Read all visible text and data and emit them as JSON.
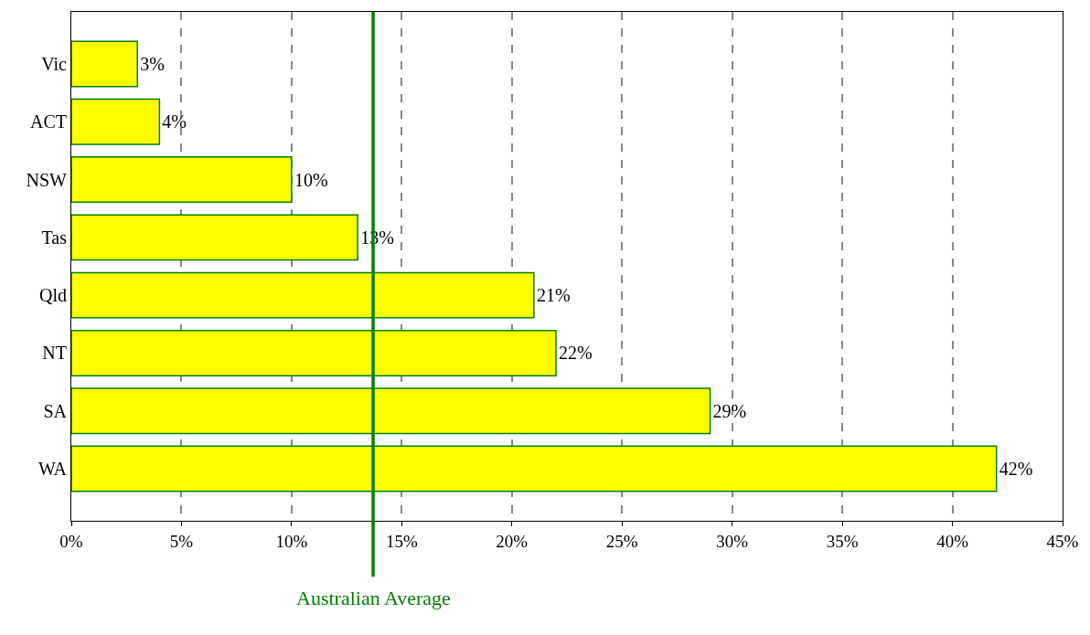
{
  "chart_data": {
    "type": "bar",
    "orientation": "horizontal",
    "categories": [
      "Vic",
      "ACT",
      "NSW",
      "Tas",
      "Qld",
      "NT",
      "SA",
      "WA"
    ],
    "values": [
      3,
      4,
      10,
      13,
      21,
      22,
      29,
      42
    ],
    "value_labels": [
      "3%",
      "4%",
      "10%",
      "13%",
      "21%",
      "22%",
      "29%",
      "42%"
    ],
    "color": "#ffff00",
    "xlim": [
      0,
      45
    ],
    "xticks": [
      {
        "value": 0,
        "label": "0%"
      },
      {
        "value": 5,
        "label": "5%"
      },
      {
        "value": 10,
        "label": "10%"
      },
      {
        "value": 15,
        "label": "15%"
      },
      {
        "value": 20,
        "label": "20%"
      },
      {
        "value": 25,
        "label": "25%"
      },
      {
        "value": 30,
        "label": "30%"
      },
      {
        "value": 35,
        "label": "35%"
      },
      {
        "value": 40,
        "label": "40%"
      },
      {
        "value": 45,
        "label": "45%"
      }
    ],
    "grid": "x",
    "ref_lines": [
      {
        "axis": "x",
        "value": 13.7,
        "label": "Australian Average",
        "color": "#008000",
        "line_style": "solid"
      }
    ]
  }
}
